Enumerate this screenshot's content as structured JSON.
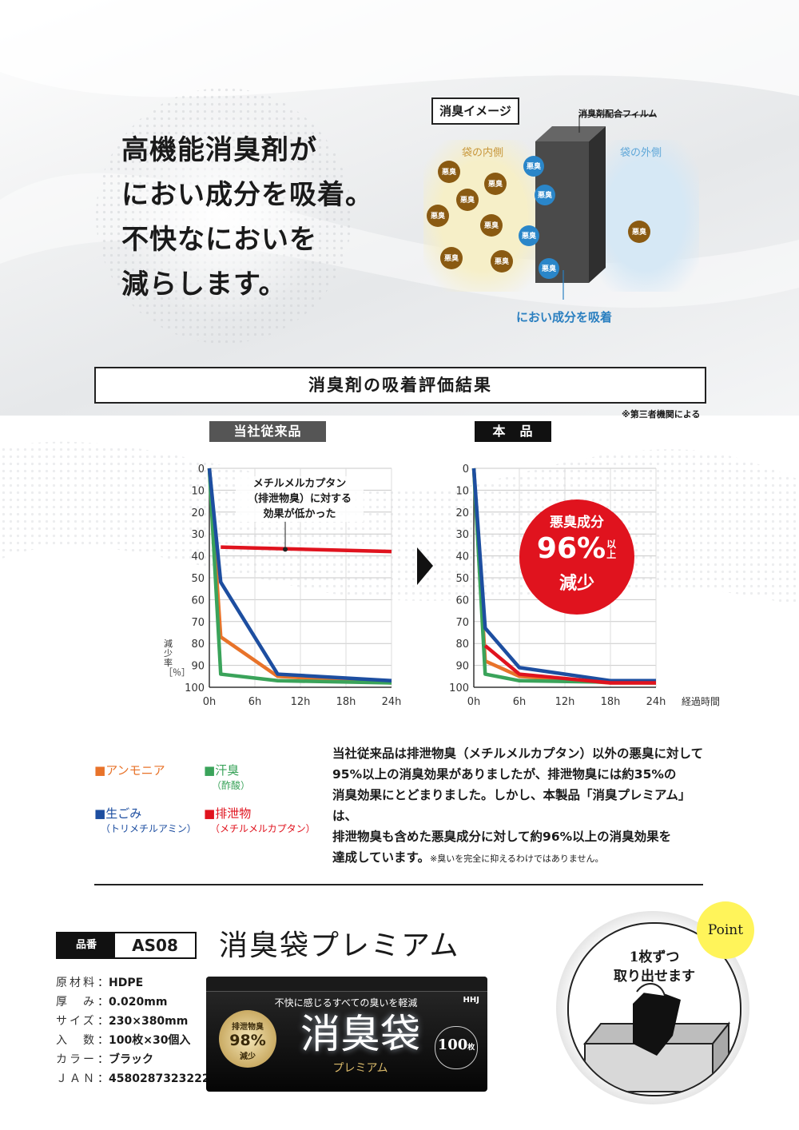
{
  "hero": {
    "lines": [
      "高機能消臭剤が",
      "におい成分を吸着。",
      "不快なにおいを",
      "減らします。"
    ]
  },
  "diagram": {
    "label": "消臭イメージ",
    "film_label": "消臭剤配合フィルム",
    "inside_label": "袋の内側",
    "outside_label": "袋の外側",
    "particle_label": "悪臭",
    "absorb_label": "におい成分を吸着"
  },
  "evaluation": {
    "title": "消臭剤の吸着評価結果",
    "note": "※第三者機関による",
    "left_tab": "当社従来品",
    "right_tab": "本　品",
    "annotation": [
      "メチルメルカプタン",
      "（排泄物臭）に対する",
      "効果が低かった"
    ],
    "badge": {
      "line1": "悪臭成分",
      "percent": "96%",
      "suffix": "以上",
      "line3": "減少"
    },
    "ylabel": "減少率［％］",
    "xlabel": "経過時間",
    "colors": {
      "ammonia": "#e8732a",
      "sweat": "#3aa35a",
      "garbage": "#1d4ea0",
      "excrement": "#e0131e",
      "tab_left": "#555555",
      "tab_right": "#111111",
      "badge": "#e0131e"
    }
  },
  "chart_data": [
    {
      "type": "line",
      "title": "当社従来品",
      "x": [
        "0h",
        "6h",
        "12h",
        "18h",
        "24h"
      ],
      "x_values": [
        0,
        1.5,
        9,
        24
      ],
      "ylabel": "減少率［％］",
      "xlabel": "経過時間",
      "ylim": [
        0,
        100
      ],
      "y_ticks": [
        0,
        10,
        20,
        30,
        40,
        50,
        60,
        70,
        80,
        90,
        100
      ],
      "y_inverted": true,
      "grid": true,
      "series": [
        {
          "name": "アンモニア",
          "color": "#e8732a",
          "points": [
            [
              0,
              0
            ],
            [
              1.5,
              77
            ],
            [
              9,
              95
            ],
            [
              24,
              98
            ]
          ]
        },
        {
          "name": "汗臭（酢酸）",
          "color": "#3aa35a",
          "points": [
            [
              0,
              0
            ],
            [
              1.5,
              94
            ],
            [
              9,
              97
            ],
            [
              24,
              98
            ]
          ]
        },
        {
          "name": "生ごみ（トリメチルアミン）",
          "color": "#1d4ea0",
          "points": [
            [
              0,
              0
            ],
            [
              1.5,
              52
            ],
            [
              9,
              94
            ],
            [
              24,
              97
            ]
          ]
        },
        {
          "name": "排泄物（メチルメルカプタン）",
          "color": "#e0131e",
          "points": [
            [
              1.5,
              36
            ],
            [
              24,
              38
            ]
          ]
        }
      ]
    },
    {
      "type": "line",
      "title": "本　品",
      "x": [
        "0h",
        "6h",
        "12h",
        "18h",
        "24h"
      ],
      "ylabel": "減少率［％］",
      "xlabel": "経過時間",
      "ylim": [
        0,
        100
      ],
      "y_ticks": [
        0,
        10,
        20,
        30,
        40,
        50,
        60,
        70,
        80,
        90,
        100
      ],
      "y_inverted": true,
      "grid": true,
      "series": [
        {
          "name": "アンモニア",
          "color": "#e8732a",
          "points": [
            [
              0,
              0
            ],
            [
              1.5,
              88
            ],
            [
              6,
              95
            ],
            [
              18,
              98
            ],
            [
              24,
              98
            ]
          ]
        },
        {
          "name": "汗臭（酢酸）",
          "color": "#3aa35a",
          "points": [
            [
              0,
              0
            ],
            [
              1.5,
              94
            ],
            [
              6,
              97
            ],
            [
              24,
              98
            ]
          ]
        },
        {
          "name": "生ごみ（トリメチルアミン）",
          "color": "#1d4ea0",
          "points": [
            [
              0,
              0
            ],
            [
              1.5,
              73
            ],
            [
              6,
              91
            ],
            [
              18,
              97
            ],
            [
              24,
              97
            ]
          ]
        },
        {
          "name": "排泄物（メチルメルカプタン）",
          "color": "#e0131e",
          "points": [
            [
              1.5,
              81
            ],
            [
              6,
              94
            ],
            [
              18,
              98
            ],
            [
              24,
              98
            ]
          ]
        }
      ]
    }
  ],
  "legend": [
    {
      "label": "アンモニア",
      "sub": "",
      "color": "#e8732a"
    },
    {
      "label": "汗臭",
      "sub": "（酢酸）",
      "color": "#3aa35a"
    },
    {
      "label": "生ごみ",
      "sub": "（トリメチルアミン）",
      "color": "#1d4ea0"
    },
    {
      "label": "排泄物",
      "sub": "（メチルメルカプタン）",
      "color": "#e0131e"
    }
  ],
  "description": {
    "lines": [
      "当社従来品は排泄物臭（メチルメルカプタン）以外の悪臭に対して",
      "95%以上の消臭効果がありましたが、排泄物臭には約35%の",
      "消臭効果にとどまりました。しかし、本製品「消臭プレミアム」は、",
      "排泄物臭も含めた悪臭成分に対して約96%以上の消臭効果を"
    ],
    "last_line": "達成しています。",
    "last_note": "※臭いを完全に抑えるわけではありません。"
  },
  "product": {
    "code_label": "品番",
    "code": "AS08",
    "name": "消臭袋プレミアム",
    "specs": [
      {
        "label": "原材料",
        "value": "HDPE"
      },
      {
        "label": "厚　み",
        "value": "0.020mm"
      },
      {
        "label": "サイズ",
        "value": "230×380mm"
      },
      {
        "label": "入　数",
        "value": "100枚×30個入"
      },
      {
        "label": "カラー",
        "value": "ブラック"
      },
      {
        "label": "ＪＡＮ",
        "value": "4580287323222"
      }
    ],
    "box": {
      "tagline": "不快に感じるすべての臭いを軽減",
      "main": "消臭袋",
      "sub": "プレミアム",
      "seal_top": "排泄物臭",
      "seal_percent": "98%",
      "seal_bottom": "減少",
      "count": "100",
      "count_unit": "枚",
      "brand": "HHJ"
    }
  },
  "point": {
    "badge": "Point",
    "lines": [
      "1枚ずつ",
      "取り出せます"
    ]
  }
}
